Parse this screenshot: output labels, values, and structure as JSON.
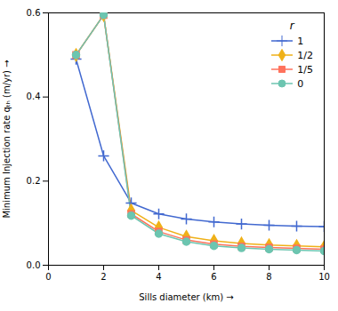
{
  "chart_data": {
    "type": "line",
    "xlabel": "Sills diameter (km)",
    "ylabel": "Minimum Injection rate qₜₕ (m/yr)",
    "xlim": [
      0,
      10
    ],
    "ylim": [
      0.0,
      0.6
    ],
    "xticks": [
      0,
      2,
      4,
      6,
      8,
      10
    ],
    "yticks": [
      {
        "value": 0.0,
        "label": "0.0"
      },
      0.2,
      0.4,
      0.6
    ],
    "grid": false,
    "legend": "upper right",
    "legend_title": "r",
    "x": [
      1,
      2,
      3,
      4,
      5,
      6,
      7,
      8,
      9,
      10
    ],
    "series": [
      {
        "name": "1",
        "marker": "plus",
        "values": [
          0.49,
          0.26,
          0.148,
          0.122,
          0.11,
          0.103,
          0.098,
          0.095,
          0.093,
          0.092
        ]
      },
      {
        "name": "1/2",
        "marker": "diamond",
        "values": [
          0.5,
          0.595,
          0.13,
          0.09,
          0.068,
          0.058,
          0.052,
          0.048,
          0.046,
          0.044
        ]
      },
      {
        "name": "1/5",
        "marker": "square",
        "values": [
          0.5,
          0.595,
          0.122,
          0.08,
          0.06,
          0.05,
          0.045,
          0.042,
          0.04,
          0.038
        ]
      },
      {
        "name": "0",
        "marker": "circle",
        "values": [
          0.5,
          0.595,
          0.118,
          0.075,
          0.056,
          0.046,
          0.041,
          0.038,
          0.036,
          0.034
        ]
      }
    ]
  }
}
